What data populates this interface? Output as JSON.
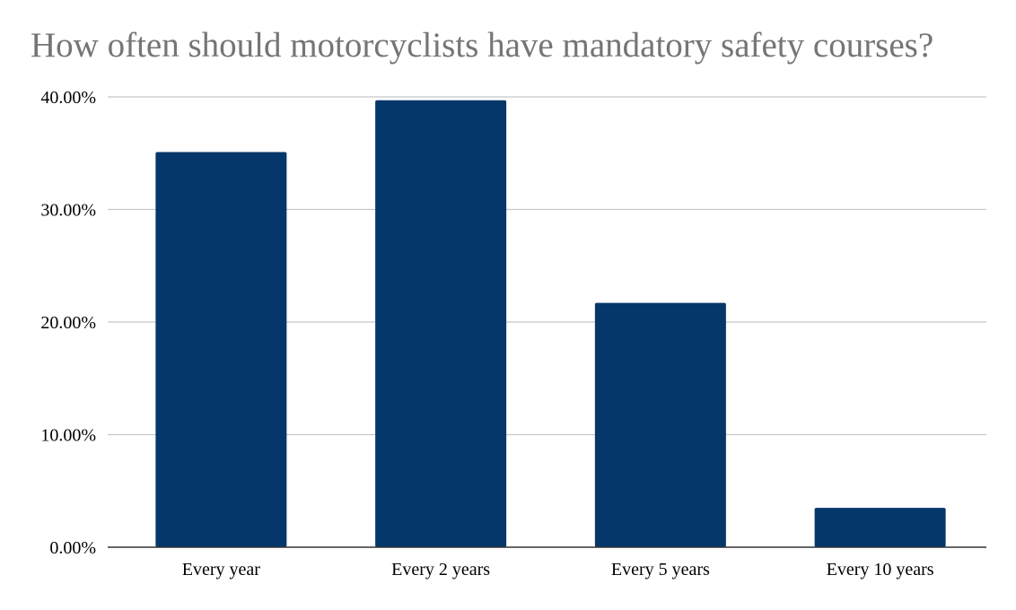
{
  "chart_data": {
    "type": "bar",
    "title": "How often should motorcyclists have mandatory safety courses?",
    "categories": [
      "Every year",
      "Every 2 years",
      "Every 5 years",
      "Every 10 years"
    ],
    "values": [
      35.1,
      39.7,
      21.7,
      3.5
    ],
    "yticks": [
      "0.00%",
      "10.00%",
      "20.00%",
      "30.00%",
      "40.00%"
    ],
    "ytick_values": [
      0,
      10,
      20,
      30,
      40
    ],
    "xlabel": "",
    "ylabel": "",
    "ylim": [
      0,
      40
    ],
    "grid": true,
    "legend": "none",
    "bar_color": "#06376b",
    "grid_color": "#c8c8c8",
    "axis_color": "#333333"
  }
}
